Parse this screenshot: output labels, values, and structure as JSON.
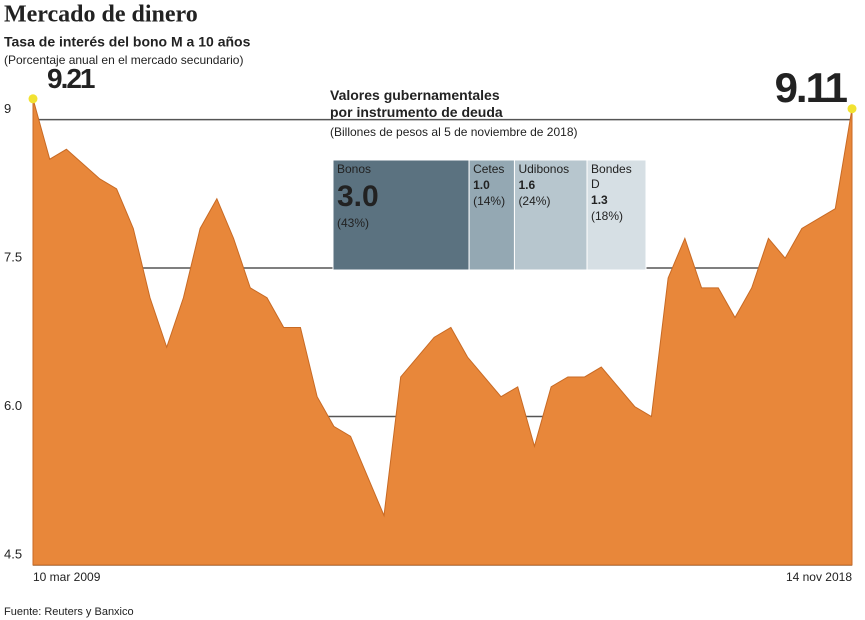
{
  "chart_data": [
    {
      "type": "area",
      "title": "Mercado de dinero",
      "subtitle": "Tasa de interés del bono M a 10 años",
      "note": "(Porcentaje anual en el mercado secundario)",
      "source": "Fuente: Reuters y Banxico",
      "color": "#e8873a",
      "categories": [
        "10 mar 2009",
        null,
        null,
        null,
        null,
        null,
        null,
        null,
        null,
        null,
        null,
        null,
        null,
        null,
        null,
        null,
        null,
        null,
        null,
        null,
        null,
        null,
        null,
        null,
        null,
        null,
        null,
        null,
        null,
        null,
        null,
        null,
        null,
        null,
        null,
        null,
        null,
        null,
        null,
        null,
        null,
        null,
        null,
        null,
        null,
        null,
        null,
        null,
        null,
        "14 nov 2018"
      ],
      "values": [
        9.21,
        8.6,
        8.7,
        8.55,
        8.4,
        8.3,
        7.9,
        7.2,
        6.7,
        7.2,
        7.9,
        8.2,
        7.8,
        7.3,
        7.2,
        6.9,
        6.9,
        6.2,
        5.9,
        5.8,
        5.4,
        5.0,
        6.4,
        6.6,
        6.8,
        6.9,
        6.6,
        6.4,
        6.2,
        6.3,
        5.7,
        6.3,
        6.4,
        6.4,
        6.5,
        6.3,
        6.1,
        6.0,
        7.4,
        7.8,
        7.3,
        7.3,
        7.0,
        7.3,
        7.8,
        7.6,
        7.9,
        8.0,
        8.1,
        9.11
      ],
      "ylim": [
        4.5,
        9.4
      ],
      "yticks": [
        4.5,
        {
          "value": 6,
          "label": "6.0"
        },
        7.5,
        9
      ],
      "grid": true
    },
    {
      "type": "treemap",
      "title": "Valores gubernamentales por instrumento de deuda",
      "subtitle": "(Billones de pesos al 5 de noviembre de 2018)",
      "categories": [
        "Bonos",
        "Cetes",
        "Udibonos",
        "Bondes D"
      ],
      "values": [
        3.0,
        1.0,
        1.6,
        1.3
      ],
      "value_labels": [
        "3.0",
        "1.0",
        "1.6",
        "1.3"
      ],
      "shares": [
        43,
        14,
        24,
        18
      ],
      "share_labels": [
        "(43%)",
        "(14%)",
        "(24%)",
        "(18%)"
      ],
      "colors": [
        "#5b7280",
        "#94a8b3",
        "#b7c6ce",
        "#d6dfe4"
      ]
    }
  ]
}
